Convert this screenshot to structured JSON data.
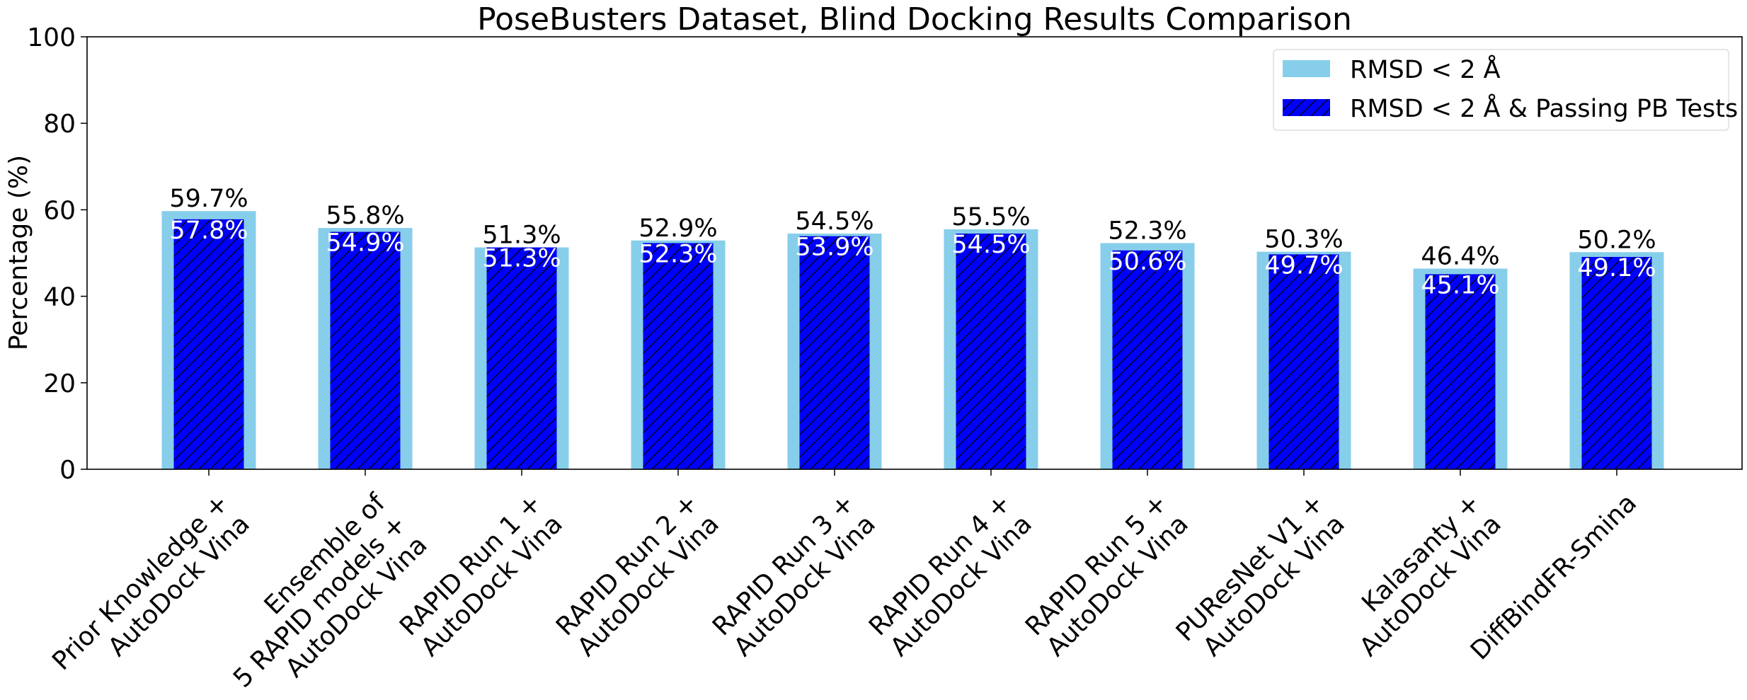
{
  "chart_data": {
    "type": "bar",
    "title": "PoseBusters Dataset, Blind Docking Results Comparison",
    "xlabel": "",
    "ylabel": "Percentage (%)",
    "ylim": [
      0,
      100
    ],
    "yticks": [
      0,
      20,
      40,
      60,
      80,
      100
    ],
    "grid": false,
    "legend_position": "top-right",
    "categories": [
      "Prior Knowledge +\nAutoDock Vina",
      "Ensemble of\n5 RAPID models +\nAutoDock Vina",
      "RAPID Run 1 +\nAutoDock Vina",
      "RAPID Run 2 +\nAutoDock Vina",
      "RAPID Run 3 +\nAutoDock Vina",
      "RAPID Run 4 +\nAutoDock Vina",
      "RAPID Run 5 +\nAutoDock Vina",
      "PUResNet V1 +\nAutoDock Vina",
      "Kalasanty +\nAutoDock Vina",
      "DiffBindFR-Smina"
    ],
    "series": [
      {
        "name": "RMSD < 2 Å",
        "color": "#87ceeb",
        "values": [
          59.7,
          55.8,
          51.3,
          52.9,
          54.5,
          55.5,
          52.3,
          50.3,
          46.4,
          50.2
        ]
      },
      {
        "name": "RMSD < 2 Å & Passing PB Tests",
        "color": "#0000ff",
        "hatch": "//",
        "values": [
          57.8,
          54.9,
          51.3,
          52.3,
          53.9,
          54.5,
          50.6,
          49.7,
          45.1,
          49.1
        ]
      }
    ]
  }
}
